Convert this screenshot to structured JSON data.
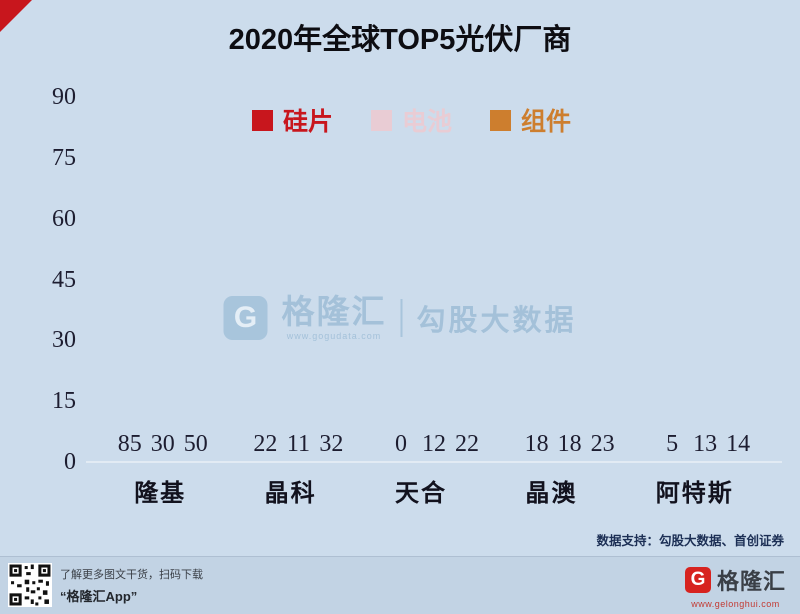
{
  "title": "2020年全球TOP5光伏厂商",
  "chart_data": {
    "type": "bar",
    "categories": [
      "隆基",
      "晶科",
      "天合",
      "晶澳",
      "阿特斯"
    ],
    "series": [
      {
        "name": "硅片",
        "color": "#c8161d",
        "values": [
          85,
          22,
          0,
          18,
          5
        ]
      },
      {
        "name": "电池",
        "color": "#e9ccd4",
        "values": [
          30,
          11,
          12,
          18,
          13
        ]
      },
      {
        "name": "组件",
        "color": "#cd7e2e",
        "values": [
          50,
          32,
          22,
          23,
          14
        ]
      }
    ],
    "ylim": [
      0,
      90
    ],
    "yticks": [
      0,
      15,
      30,
      45,
      60,
      75,
      90
    ],
    "legend_position": "top",
    "grid": false
  },
  "watermark": {
    "logo_letter": "G",
    "brand": "格隆汇",
    "label": "勾股大数据",
    "url": "www.gogudata.com"
  },
  "source_note": "数据支持：勾股大数据、首创证券",
  "footer": {
    "qr_caption_line1": "了解更多图文干货，扫码下载",
    "qr_caption_line2": "“格隆汇App”",
    "logo_letter": "G",
    "brand": "格隆汇",
    "brand_url": "www.gelonghui.com"
  }
}
